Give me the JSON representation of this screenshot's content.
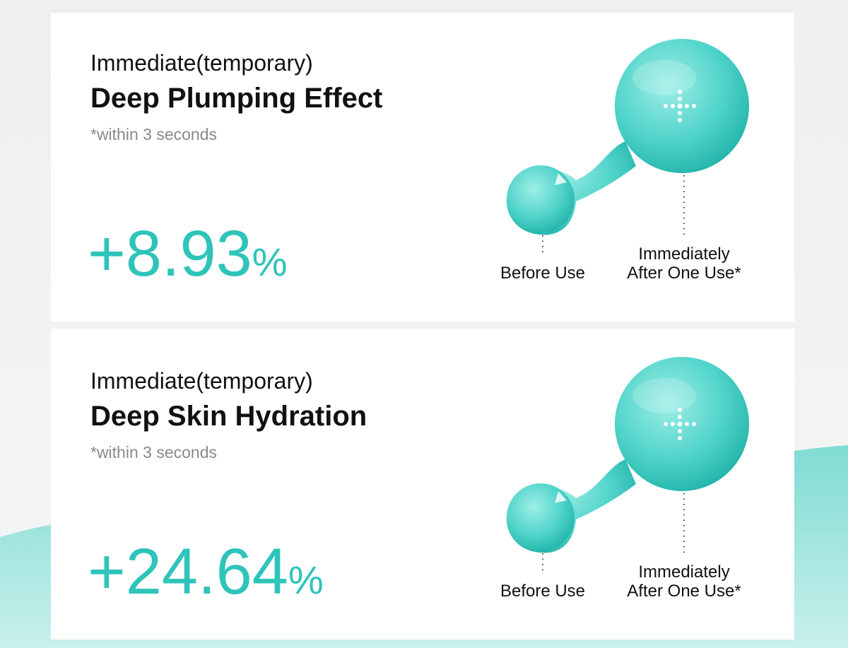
{
  "cards": [
    {
      "subtitle": "Immediate(temporary)",
      "title": "Deep Plumping Effect",
      "note": "*within 3 seconds",
      "stat": "+8.93",
      "unit": "%",
      "before_label": "Before Use",
      "after_label": [
        "Immediately",
        "After One Use*"
      ]
    },
    {
      "subtitle": "Immediate(temporary)",
      "title": "Deep Skin Hydration",
      "note": "*within 3 seconds",
      "stat": "+24.64",
      "unit": "%",
      "before_label": "Before Use",
      "after_label": [
        "Immediately",
        "After One Use*"
      ]
    }
  ]
}
